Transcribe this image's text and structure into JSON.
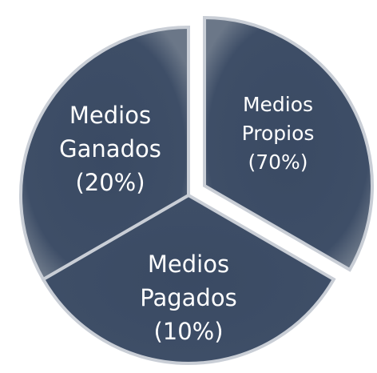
{
  "segments": [
    {
      "lines": [
        "Medios",
        "Propios",
        "(70%)"
      ]
    },
    {
      "lines": [
        "Medios",
        "Pagados",
        "(10%)"
      ]
    },
    {
      "lines": [
        "Medios",
        "Ganados",
        "(20%)"
      ]
    }
  ]
}
